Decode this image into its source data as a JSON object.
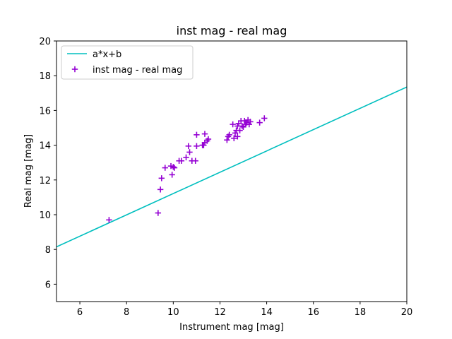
{
  "chart_data": {
    "type": "scatter",
    "title": "inst mag - real mag",
    "xlabel": "Instrument mag [mag]",
    "ylabel": "Real mag [mag]",
    "xlim": [
      5,
      20
    ],
    "ylim": [
      5,
      20
    ],
    "xticks": [
      6,
      8,
      10,
      12,
      14,
      16,
      18,
      20
    ],
    "yticks": [
      6,
      8,
      10,
      12,
      14,
      16,
      18,
      20
    ],
    "grid": false,
    "legend_position": "top-left",
    "series": [
      {
        "name": "a*x+b",
        "type": "line",
        "color": "#00bfbf",
        "x": [
          5,
          20
        ],
        "y": [
          8.15,
          17.35
        ]
      },
      {
        "name": "inst mag - real mag",
        "type": "scatter",
        "marker": "plus",
        "color": "#9400d3",
        "points": [
          [
            7.25,
            9.7
          ],
          [
            9.35,
            10.1
          ],
          [
            9.45,
            11.45
          ],
          [
            9.5,
            12.1
          ],
          [
            9.65,
            12.7
          ],
          [
            9.9,
            12.8
          ],
          [
            9.95,
            12.3
          ],
          [
            10.0,
            12.75
          ],
          [
            10.05,
            12.7
          ],
          [
            10.25,
            13.1
          ],
          [
            10.35,
            13.1
          ],
          [
            10.55,
            13.3
          ],
          [
            10.65,
            13.95
          ],
          [
            10.7,
            13.6
          ],
          [
            10.8,
            13.1
          ],
          [
            10.95,
            13.1
          ],
          [
            11.0,
            14.6
          ],
          [
            11.0,
            13.95
          ],
          [
            11.25,
            14.0
          ],
          [
            11.3,
            14.0
          ],
          [
            11.35,
            14.15
          ],
          [
            11.35,
            14.65
          ],
          [
            11.45,
            14.25
          ],
          [
            11.5,
            14.35
          ],
          [
            12.3,
            14.3
          ],
          [
            12.35,
            14.5
          ],
          [
            12.4,
            14.6
          ],
          [
            12.55,
            15.2
          ],
          [
            12.6,
            14.4
          ],
          [
            12.65,
            14.7
          ],
          [
            12.7,
            14.85
          ],
          [
            12.75,
            15.1
          ],
          [
            12.75,
            14.5
          ],
          [
            12.8,
            15.25
          ],
          [
            12.85,
            14.85
          ],
          [
            12.9,
            15.4
          ],
          [
            12.95,
            15.1
          ],
          [
            13.0,
            15.05
          ],
          [
            13.05,
            15.4
          ],
          [
            13.1,
            15.2
          ],
          [
            13.15,
            15.3
          ],
          [
            13.2,
            15.45
          ],
          [
            13.25,
            15.2
          ],
          [
            13.3,
            15.35
          ],
          [
            13.7,
            15.3
          ],
          [
            13.9,
            15.55
          ]
        ]
      }
    ]
  }
}
